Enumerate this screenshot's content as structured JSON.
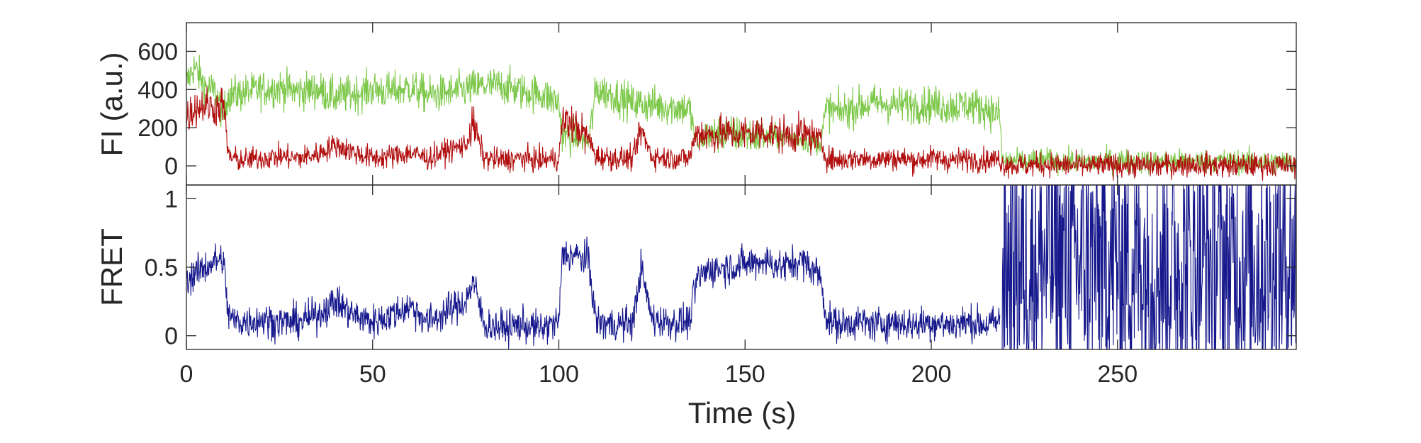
{
  "chart_data": [
    {
      "type": "line",
      "title": "",
      "xlabel": "",
      "ylabel": "FI (a.u.)",
      "xlim": [
        0,
        298
      ],
      "ylim": [
        -100,
        750
      ],
      "yticks": [
        0,
        200,
        400,
        600
      ],
      "ytick_labels": [
        "0",
        "200",
        "400",
        "600"
      ],
      "xticks": [
        0,
        50,
        100,
        150,
        200,
        250
      ],
      "show_xtick_labels": false,
      "grid": false,
      "legend": "none",
      "series": [
        {
          "color": "#7dc84a",
          "x": [
            0,
            2,
            5,
            8,
            10,
            11,
            15,
            20,
            25,
            30,
            35,
            40,
            45,
            50,
            55,
            60,
            65,
            70,
            75,
            80,
            85,
            90,
            95,
            100,
            101,
            105,
            108,
            110,
            115,
            120,
            125,
            130,
            135,
            137,
            140,
            145,
            150,
            155,
            160,
            165,
            170,
            172,
            175,
            180,
            185,
            190,
            195,
            200,
            205,
            210,
            215,
            218.5,
            219,
            225,
            230,
            240,
            250,
            260,
            270,
            280,
            290,
            298
          ],
          "y": [
            430,
            520,
            420,
            380,
            260,
            370,
            380,
            400,
            410,
            390,
            400,
            360,
            380,
            400,
            390,
            410,
            370,
            380,
            400,
            420,
            420,
            390,
            380,
            330,
            160,
            150,
            120,
            400,
            370,
            330,
            320,
            310,
            300,
            120,
            160,
            170,
            160,
            150,
            150,
            140,
            120,
            300,
            280,
            310,
            330,
            320,
            320,
            320,
            310,
            320,
            300,
            260,
            30,
            20,
            30,
            20,
            30,
            20,
            25,
            25,
            20,
            15
          ]
        },
        {
          "color": "#b10e0e",
          "x": [
            0,
            2,
            5,
            8,
            10,
            11,
            12,
            15,
            20,
            25,
            30,
            35,
            40,
            45,
            50,
            55,
            60,
            65,
            70,
            75,
            77,
            80,
            85,
            90,
            95,
            100,
            101,
            105,
            108,
            110,
            115,
            120,
            122,
            125,
            130,
            135,
            137,
            140,
            145,
            150,
            155,
            160,
            165,
            170,
            172,
            175,
            180,
            185,
            190,
            195,
            200,
            205,
            210,
            215,
            218.5,
            219,
            225,
            230,
            240,
            250,
            260,
            270,
            280,
            290,
            298
          ],
          "y": [
            250,
            300,
            320,
            300,
            330,
            90,
            40,
            30,
            40,
            50,
            40,
            60,
            110,
            70,
            40,
            50,
            70,
            40,
            80,
            110,
            220,
            40,
            30,
            40,
            30,
            40,
            240,
            200,
            140,
            50,
            40,
            40,
            190,
            50,
            40,
            40,
            180,
            160,
            170,
            170,
            180,
            160,
            170,
            140,
            40,
            30,
            40,
            35,
            40,
            30,
            40,
            30,
            35,
            30,
            35,
            10,
            0,
            10,
            0,
            5,
            0,
            10,
            0,
            5,
            0
          ]
        }
      ]
    },
    {
      "type": "line",
      "title": "",
      "xlabel": "Time (s)",
      "ylabel": "FRET",
      "xlim": [
        0,
        298
      ],
      "ylim": [
        -0.1,
        1.1
      ],
      "yticks": [
        0,
        0.5,
        1
      ],
      "ytick_labels": [
        "0",
        "0.5",
        "1"
      ],
      "xticks": [
        0,
        50,
        100,
        150,
        200,
        250
      ],
      "xtick_labels": [
        "0",
        "50",
        "100",
        "150",
        "200",
        "250"
      ],
      "grid": false,
      "legend": "none",
      "series": [
        {
          "color": "#16188c",
          "x": [
            0,
            2,
            5,
            8,
            10,
            11,
            12,
            15,
            20,
            25,
            30,
            35,
            40,
            45,
            50,
            55,
            60,
            65,
            70,
            75,
            77,
            80,
            85,
            90,
            95,
            100,
            101,
            105,
            108,
            110,
            115,
            120,
            122,
            125,
            130,
            135,
            137,
            140,
            145,
            150,
            155,
            160,
            165,
            170,
            172,
            175,
            180,
            185,
            190,
            195,
            200,
            205,
            210,
            215,
            218.5
          ],
          "y": [
            0.4,
            0.45,
            0.5,
            0.55,
            0.55,
            0.2,
            0.12,
            0.1,
            0.12,
            0.1,
            0.1,
            0.15,
            0.25,
            0.15,
            0.1,
            0.15,
            0.22,
            0.1,
            0.18,
            0.25,
            0.4,
            0.08,
            0.06,
            0.08,
            0.05,
            0.1,
            0.6,
            0.58,
            0.55,
            0.1,
            0.08,
            0.1,
            0.5,
            0.12,
            0.1,
            0.1,
            0.4,
            0.48,
            0.5,
            0.52,
            0.55,
            0.5,
            0.55,
            0.45,
            0.12,
            0.08,
            0.1,
            0.08,
            0.1,
            0.08,
            0.1,
            0.08,
            0.1,
            0.08,
            0.1
          ]
        }
      ],
      "noise_segment": {
        "x_start": 219,
        "x_end": 298,
        "description_values": [
          -0.1,
          1.1
        ]
      }
    }
  ]
}
